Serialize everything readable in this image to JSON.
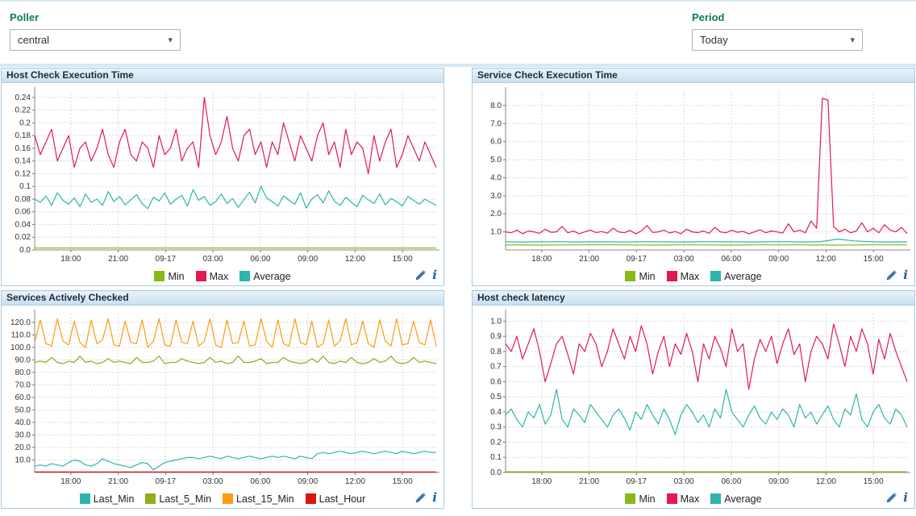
{
  "filters": {
    "poller": {
      "label": "Poller",
      "value": "central"
    },
    "period": {
      "label": "Period",
      "value": "Today"
    }
  },
  "icons": {
    "caret_down": "▾",
    "info": "i"
  },
  "xticks": [
    [
      0.09,
      "18:00"
    ],
    [
      0.208,
      "21:00"
    ],
    [
      0.326,
      "09-17"
    ],
    [
      0.444,
      "03:00"
    ],
    [
      0.562,
      "06:00"
    ],
    [
      0.68,
      "09:00"
    ],
    [
      0.798,
      "12:00"
    ],
    [
      0.916,
      "15:00"
    ]
  ],
  "charts": [
    {
      "title": "Host Check Execution Time",
      "ylim": [
        0,
        0.25
      ],
      "yticks": [
        [
          0.24,
          "0.24"
        ],
        [
          0.22,
          "0.22"
        ],
        [
          0.2,
          "0.2"
        ],
        [
          0.18,
          "0.18"
        ],
        [
          0.16,
          "0.16"
        ],
        [
          0.14,
          "0.14"
        ],
        [
          0.12,
          "0.12"
        ],
        [
          0.1,
          "0.1"
        ],
        [
          0.08,
          "0.08"
        ],
        [
          0.06,
          "0.06"
        ],
        [
          0.04,
          "0.04"
        ],
        [
          0.02,
          "0.02"
        ],
        [
          0,
          "0.0"
        ]
      ],
      "chart_data": {
        "type": "line",
        "series": [
          {
            "name": "Min",
            "color": "#88b917",
            "values": [
              0.003,
              0.003
            ]
          },
          {
            "name": "Max",
            "color": "#e31952",
            "values": [
              0.18,
              0.15,
              0.17,
              0.19,
              0.14,
              0.16,
              0.18,
              0.13,
              0.16,
              0.17,
              0.14,
              0.16,
              0.19,
              0.15,
              0.13,
              0.17,
              0.19,
              0.15,
              0.14,
              0.17,
              0.16,
              0.13,
              0.18,
              0.15,
              0.16,
              0.19,
              0.14,
              0.16,
              0.17,
              0.13,
              0.24,
              0.18,
              0.15,
              0.17,
              0.21,
              0.16,
              0.14,
              0.18,
              0.19,
              0.15,
              0.17,
              0.13,
              0.17,
              0.15,
              0.2,
              0.17,
              0.14,
              0.18,
              0.16,
              0.14,
              0.18,
              0.2,
              0.15,
              0.17,
              0.13,
              0.19,
              0.15,
              0.17,
              0.16,
              0.12,
              0.18,
              0.14,
              0.17,
              0.19,
              0.13,
              0.15,
              0.18,
              0.16,
              0.14,
              0.17,
              0.15,
              0.13
            ]
          },
          {
            "name": "Average",
            "color": "#2cb5ac",
            "values": [
              0.08,
              0.075,
              0.085,
              0.07,
              0.09,
              0.078,
              0.072,
              0.082,
              0.068,
              0.088,
              0.075,
              0.08,
              0.07,
              0.092,
              0.076,
              0.084,
              0.071,
              0.079,
              0.087,
              0.073,
              0.065,
              0.083,
              0.077,
              0.09,
              0.072,
              0.08,
              0.086,
              0.069,
              0.095,
              0.078,
              0.084,
              0.07,
              0.076,
              0.088,
              0.073,
              0.081,
              0.067,
              0.079,
              0.091,
              0.074,
              0.1,
              0.082,
              0.076,
              0.069,
              0.085,
              0.078,
              0.072,
              0.09,
              0.066,
              0.08,
              0.087,
              0.074,
              0.093,
              0.077,
              0.07,
              0.083,
              0.075,
              0.068,
              0.086,
              0.079,
              0.073,
              0.088,
              0.071,
              0.081,
              0.076,
              0.069,
              0.084,
              0.078,
              0.072,
              0.08,
              0.075,
              0.07
            ]
          }
        ]
      }
    },
    {
      "title": "Service Check Execution Time",
      "ylim": [
        0,
        8.8
      ],
      "yticks": [
        [
          8,
          "8.0"
        ],
        [
          7,
          "7.0"
        ],
        [
          6,
          "6.0"
        ],
        [
          5,
          "5.0"
        ],
        [
          4,
          "4.0"
        ],
        [
          3,
          "3.0"
        ],
        [
          2,
          "2.0"
        ],
        [
          1,
          "1.0"
        ]
      ],
      "chart_data": {
        "type": "line",
        "series": [
          {
            "name": "Min",
            "color": "#88b917",
            "values": [
              0.28,
              0.27,
              0.28,
              0.28,
              0.27,
              0.28,
              0.27,
              0.28,
              0.28,
              0.27,
              0.28,
              0.28
            ]
          },
          {
            "name": "Max",
            "color": "#e31952",
            "values": [
              1.0,
              0.95,
              1.1,
              0.9,
              1.05,
              1.0,
              0.92,
              1.15,
              0.98,
              1.0,
              1.3,
              0.95,
              1.05,
              0.9,
              1.0,
              1.1,
              0.96,
              1.02,
              0.93,
              1.2,
              1.0,
              0.95,
              1.08,
              0.9,
              1.05,
              1.35,
              0.97,
              1.0,
              1.1,
              0.94,
              1.02,
              0.9,
              1.15,
              1.0,
              0.96,
              1.05,
              0.92,
              1.25,
              1.0,
              0.95,
              1.1,
              0.98,
              1.03,
              0.9,
              1.0,
              1.12,
              0.95,
              1.05,
              1.0,
              0.93,
              1.45,
              1.0,
              1.1,
              0.95,
              1.6,
              1.2,
              8.4,
              8.3,
              1.3,
              1.0,
              1.15,
              0.95,
              1.05,
              1.5,
              1.0,
              1.2,
              0.95,
              1.4,
              1.1,
              1.0,
              1.25,
              0.9
            ]
          },
          {
            "name": "Average",
            "color": "#2cb5ac",
            "values": [
              0.45,
              0.44,
              0.45,
              0.46,
              0.44,
              0.45,
              0.45,
              0.44,
              0.46,
              0.45,
              0.44,
              0.45,
              0.46,
              0.45,
              0.44,
              0.45,
              0.46,
              0.44,
              0.45,
              0.6,
              0.5,
              0.45,
              0.44,
              0.45
            ]
          }
        ]
      }
    },
    {
      "title": "Services Actively Checked",
      "ylim": [
        0,
        127
      ],
      "yticks": [
        [
          120,
          "120.0"
        ],
        [
          110,
          "110.0"
        ],
        [
          100,
          "100.0"
        ],
        [
          90,
          "90.0"
        ],
        [
          80,
          "80.0"
        ],
        [
          70,
          "70.0"
        ],
        [
          60,
          "60.0"
        ],
        [
          50,
          "50.0"
        ],
        [
          40,
          "40.0"
        ],
        [
          30,
          "30.0"
        ],
        [
          20,
          "20.0"
        ],
        [
          10,
          "10.0"
        ]
      ],
      "chart_data": {
        "type": "line",
        "series": [
          {
            "name": "Last_Min",
            "color": "#2cb5ac",
            "values": [
              5,
              6,
              5,
              7,
              6,
              5,
              8,
              10,
              9,
              6,
              5,
              7,
              11,
              9,
              7,
              6,
              5,
              4,
              6,
              8,
              7,
              2,
              5,
              8,
              9,
              10,
              11,
              12,
              12,
              11,
              12,
              13,
              12,
              11,
              13,
              12,
              11,
              12,
              13,
              12,
              11,
              12,
              13,
              12,
              13,
              12,
              11,
              13,
              12,
              11,
              15,
              16,
              15,
              16,
              17,
              16,
              15,
              16,
              17,
              16,
              15,
              16,
              17,
              16,
              15,
              17,
              16,
              15,
              16,
              17,
              16,
              16
            ]
          },
          {
            "name": "Last_5_Min",
            "color": "#8fae1b",
            "values": [
              88,
              89,
              88,
              92,
              88,
              87,
              89,
              88,
              93,
              88,
              89,
              87,
              88,
              91,
              88,
              89,
              88,
              87,
              92,
              88,
              88,
              89,
              93,
              87,
              88,
              88,
              91,
              89,
              88,
              87,
              88,
              92,
              88,
              89,
              87,
              88,
              93,
              88,
              88,
              89,
              91,
              87,
              88,
              88,
              92,
              89,
              88,
              87,
              88,
              91,
              88,
              93,
              88,
              87,
              89,
              88,
              92,
              88,
              87,
              88,
              91,
              88,
              89,
              93,
              88,
              87,
              88,
              92,
              88,
              89,
              88,
              87
            ]
          },
          {
            "name": "Last_15_Min",
            "color": "#ff9a13",
            "values": [
              104,
              122,
              103,
              101,
              123,
              105,
              102,
              121,
              104,
              100,
              122,
              103,
              106,
              123,
              102,
              101,
              121,
              104,
              103,
              122,
              100,
              105,
              123,
              102,
              101,
              122,
              104,
              103,
              121,
              101,
              105,
              123,
              102,
              100,
              122,
              103,
              104,
              121,
              101,
              102,
              123,
              105,
              100,
              122,
              103,
              101,
              123,
              104,
              102,
              121,
              100,
              103,
              122,
              101,
              105,
              123,
              102,
              104,
              121,
              103,
              100,
              122,
              105,
              101,
              123,
              102,
              103,
              121,
              104,
              102,
              122,
              101
            ]
          },
          {
            "name": "Last_Hour",
            "color": "#e01313",
            "values": [
              0.4,
              0.4
            ]
          }
        ]
      }
    },
    {
      "title": "Host check latency",
      "ylim": [
        0,
        1.05
      ],
      "yticks": [
        [
          1,
          "1.0"
        ],
        [
          0.9,
          "0.9"
        ],
        [
          0.8,
          "0.8"
        ],
        [
          0.7,
          "0.7"
        ],
        [
          0.6,
          "0.6"
        ],
        [
          0.5,
          "0.5"
        ],
        [
          0.4,
          "0.4"
        ],
        [
          0.3,
          "0.3"
        ],
        [
          0.2,
          "0.2"
        ],
        [
          0.1,
          "0.1"
        ],
        [
          0,
          "0.0"
        ]
      ],
      "chart_data": {
        "type": "line",
        "series": [
          {
            "name": "Min",
            "color": "#88b917",
            "values": [
              0.005,
              0.005
            ]
          },
          {
            "name": "Max",
            "color": "#e31952",
            "values": [
              0.85,
              0.8,
              0.9,
              0.75,
              0.85,
              0.95,
              0.8,
              0.6,
              0.72,
              0.85,
              0.9,
              0.78,
              0.65,
              0.85,
              0.8,
              0.92,
              0.85,
              0.7,
              0.8,
              0.95,
              0.85,
              0.75,
              0.9,
              0.8,
              0.97,
              0.85,
              0.65,
              0.8,
              0.9,
              0.7,
              0.85,
              0.78,
              0.92,
              0.8,
              0.6,
              0.85,
              0.75,
              0.9,
              0.82,
              0.7,
              0.95,
              0.8,
              0.85,
              0.55,
              0.75,
              0.88,
              0.8,
              0.9,
              0.72,
              0.85,
              0.95,
              0.78,
              0.85,
              0.6,
              0.8,
              0.9,
              0.85,
              0.75,
              0.98,
              0.85,
              0.7,
              0.9,
              0.8,
              0.95,
              0.85,
              0.65,
              0.88,
              0.75,
              0.92,
              0.8,
              0.7,
              0.6
            ]
          },
          {
            "name": "Average",
            "color": "#2cb5ac",
            "values": [
              0.38,
              0.42,
              0.35,
              0.3,
              0.4,
              0.36,
              0.45,
              0.32,
              0.38,
              0.55,
              0.35,
              0.3,
              0.42,
              0.38,
              0.33,
              0.45,
              0.4,
              0.35,
              0.3,
              0.38,
              0.42,
              0.36,
              0.28,
              0.4,
              0.35,
              0.45,
              0.38,
              0.32,
              0.42,
              0.35,
              0.25,
              0.38,
              0.45,
              0.4,
              0.33,
              0.38,
              0.3,
              0.42,
              0.36,
              0.55,
              0.4,
              0.35,
              0.3,
              0.38,
              0.44,
              0.36,
              0.32,
              0.4,
              0.35,
              0.42,
              0.38,
              0.3,
              0.45,
              0.36,
              0.4,
              0.32,
              0.38,
              0.44,
              0.35,
              0.3,
              0.42,
              0.38,
              0.52,
              0.35,
              0.3,
              0.4,
              0.45,
              0.36,
              0.32,
              0.42,
              0.38,
              0.3
            ]
          }
        ]
      }
    }
  ]
}
